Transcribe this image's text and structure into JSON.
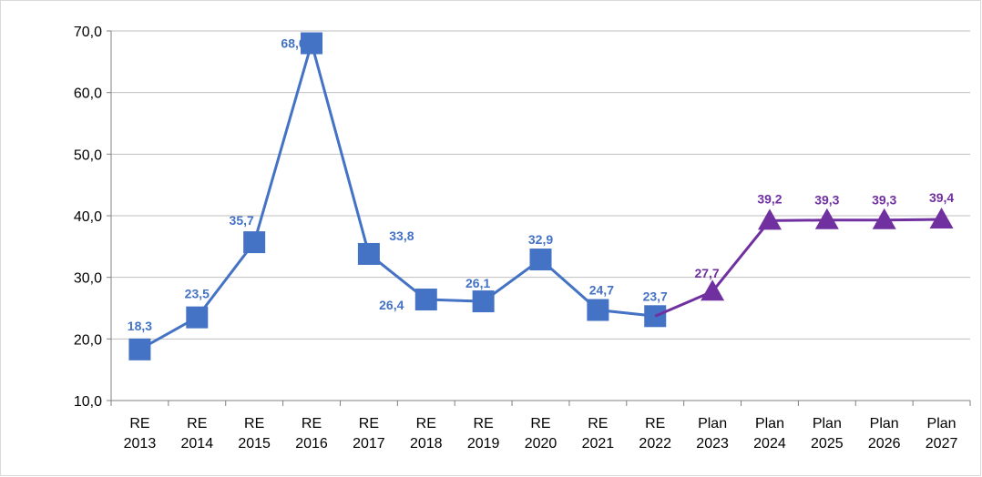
{
  "chart_data": {
    "type": "line",
    "categories": [
      "RE 2013",
      "RE 2014",
      "RE 2015",
      "RE 2016",
      "RE 2017",
      "RE 2018",
      "RE 2019",
      "RE 2020",
      "RE 2021",
      "RE 2022",
      "Plan 2023",
      "Plan 2024",
      "Plan 2025",
      "Plan 2026",
      "Plan 2027"
    ],
    "series": [
      {
        "color": "#4472c4",
        "marker": "square",
        "values": [
          18.3,
          23.5,
          35.7,
          68.0,
          33.8,
          26.4,
          26.1,
          32.9,
          24.7,
          23.7,
          null,
          null,
          null,
          null,
          null
        ],
        "value_labels": [
          "18,3",
          "23,5",
          "35,7",
          "68,0",
          "33,8",
          "26,4",
          "26,1",
          "32,9",
          "24,7",
          "23,7",
          null,
          null,
          null,
          null,
          null
        ]
      },
      {
        "color": "#7030a0",
        "marker": "triangle",
        "values": [
          null,
          null,
          null,
          null,
          null,
          null,
          null,
          null,
          null,
          null,
          27.7,
          39.2,
          39.3,
          39.3,
          39.4
        ],
        "value_labels": [
          null,
          null,
          null,
          null,
          null,
          null,
          null,
          null,
          null,
          null,
          "27,7",
          "39,2",
          "39,3",
          "39,3",
          "39,4"
        ]
      }
    ],
    "ylim": [
      10,
      70
    ],
    "yticks": [
      {
        "value": 10,
        "label": "10,0"
      },
      {
        "value": 20,
        "label": "20,0"
      },
      {
        "value": 30,
        "label": "30,0"
      },
      {
        "value": 40,
        "label": "40,0"
      },
      {
        "value": 50,
        "label": "50,0"
      },
      {
        "value": 60,
        "label": "60,0"
      },
      {
        "value": 70,
        "label": "70,0"
      }
    ],
    "grid": true
  }
}
